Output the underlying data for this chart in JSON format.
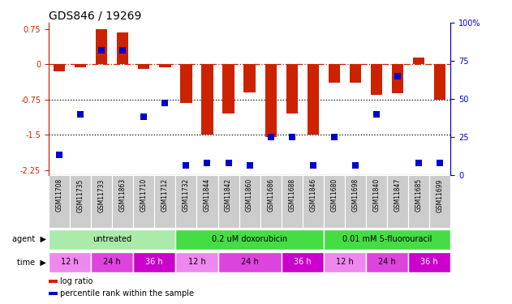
{
  "title": "GDS846 / 19269",
  "samples": [
    "GSM11708",
    "GSM11735",
    "GSM11733",
    "GSM11863",
    "GSM11710",
    "GSM11712",
    "GSM11732",
    "GSM11844",
    "GSM11842",
    "GSM11860",
    "GSM11686",
    "GSM11688",
    "GSM11846",
    "GSM11680",
    "GSM11698",
    "GSM11840",
    "GSM11847",
    "GSM11685",
    "GSM11699"
  ],
  "log_ratio": [
    -0.15,
    -0.07,
    0.75,
    0.68,
    -0.1,
    -0.07,
    -0.82,
    -1.5,
    -1.05,
    -0.6,
    -1.55,
    -1.05,
    -1.5,
    -0.4,
    -0.4,
    -0.65,
    -0.62,
    0.15,
    -0.75
  ],
  "percentile": [
    13,
    40,
    82,
    82,
    38,
    47,
    6,
    8,
    8,
    6,
    25,
    25,
    6,
    25,
    6,
    40,
    65,
    8,
    8
  ],
  "bar_color": "#cc2200",
  "dot_color": "#0000cc",
  "ylim_left": [
    -2.35,
    0.88
  ],
  "ylim_right": [
    0,
    100
  ],
  "yticks_left": [
    0.75,
    0,
    -0.75,
    -1.5,
    -2.25
  ],
  "yticks_right": [
    100,
    75,
    50,
    25,
    0
  ],
  "hlines_dotted": [
    -0.75,
    -1.5
  ],
  "hline_dashdot": 0,
  "agent_groups": [
    {
      "label": "untreated",
      "start": 0,
      "end": 6,
      "color": "#aaeaaa"
    },
    {
      "label": "0.2 uM doxorubicin",
      "start": 6,
      "end": 13,
      "color": "#44dd44"
    },
    {
      "label": "0.01 mM 5-fluorouracil",
      "start": 13,
      "end": 19,
      "color": "#44dd44"
    }
  ],
  "time_groups": [
    {
      "label": "12 h",
      "start": 0,
      "end": 2,
      "color": "#ee88ee",
      "text_color": "black"
    },
    {
      "label": "24 h",
      "start": 2,
      "end": 4,
      "color": "#dd44dd",
      "text_color": "black"
    },
    {
      "label": "36 h",
      "start": 4,
      "end": 6,
      "color": "#cc00cc",
      "text_color": "white"
    },
    {
      "label": "12 h",
      "start": 6,
      "end": 8,
      "color": "#ee88ee",
      "text_color": "black"
    },
    {
      "label": "24 h",
      "start": 8,
      "end": 11,
      "color": "#dd44dd",
      "text_color": "black"
    },
    {
      "label": "36 h",
      "start": 11,
      "end": 13,
      "color": "#cc00cc",
      "text_color": "white"
    },
    {
      "label": "12 h",
      "start": 13,
      "end": 15,
      "color": "#ee88ee",
      "text_color": "black"
    },
    {
      "label": "24 h",
      "start": 15,
      "end": 17,
      "color": "#dd44dd",
      "text_color": "black"
    },
    {
      "label": "36 h",
      "start": 17,
      "end": 19,
      "color": "#cc00cc",
      "text_color": "white"
    }
  ],
  "bar_width": 0.55,
  "dot_size": 35,
  "sample_label_fontsize": 5.5,
  "tick_fontsize": 7,
  "title_fontsize": 10,
  "row_label_fontsize": 7,
  "group_label_fontsize": 7,
  "cell_color": "#cccccc",
  "cell_edge_color": "#ffffff"
}
